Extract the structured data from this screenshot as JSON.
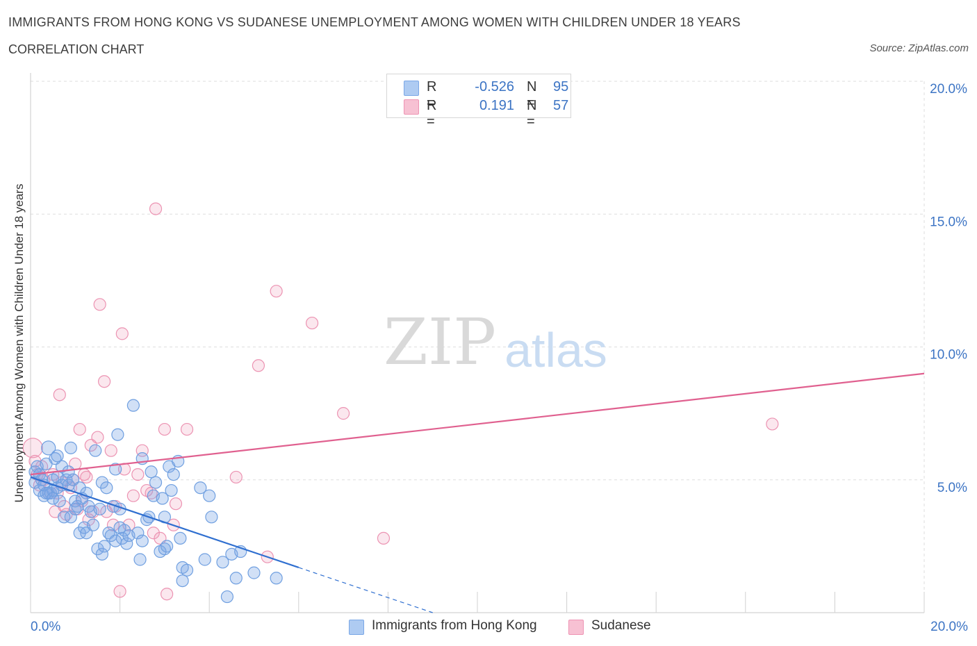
{
  "title": "IMMIGRANTS FROM HONG KONG VS SUDANESE UNEMPLOYMENT AMONG WOMEN WITH CHILDREN UNDER 18 YEARS",
  "subtitle": "CORRELATION CHART",
  "source": "Source: ZipAtlas.com",
  "watermark": {
    "zip": "ZIP",
    "atlas": "atlas"
  },
  "legend": {
    "rows": [
      {
        "r_label": "R =",
        "r_value": "-0.526",
        "n_label": "N =",
        "n_value": "95",
        "color": "#aecbf2",
        "border": "#7aa7e6"
      },
      {
        "r_label": "R =",
        "r_value": "0.191",
        "n_label": "N =",
        "n_value": "57",
        "color": "#f7c1d3",
        "border": "#ee93b3"
      }
    ]
  },
  "bottom_legend": [
    {
      "label": "Immigrants from Hong Kong",
      "color": "#aecbf2",
      "border": "#7aa7e6"
    },
    {
      "label": "Sudanese",
      "color": "#f7c1d3",
      "border": "#ee93b3"
    }
  ],
  "colors": {
    "blue_fill": "rgba(122,167,230,0.35)",
    "blue_stroke": "#6f9fe0",
    "blue_line": "#2f6fd0",
    "pink_fill": "rgba(238,147,179,0.22)",
    "pink_stroke": "#ec93b2",
    "pink_line": "#e0608f",
    "grid": "#dedede",
    "axis_text": "#3c74c4"
  },
  "chart_data": {
    "type": "scatter",
    "ylabel": "Unemployment Among Women with Children Under 18 years",
    "xlabel": "",
    "x_ticks": [
      "0.0%",
      "20.0%"
    ],
    "y_ticks": [
      "5.0%",
      "10.0%",
      "15.0%",
      "20.0%"
    ],
    "xlim": [
      0,
      20
    ],
    "ylim": [
      0,
      20
    ],
    "grid": true,
    "series": [
      {
        "name": "Immigrants from Hong Kong",
        "trend": {
          "x0": 0,
          "y0": 5.1,
          "x1": 6.0,
          "y1": 1.7,
          "dashed_to_x": 9.0
        },
        "points": [
          [
            0.1,
            5.3
          ],
          [
            0.1,
            4.9
          ],
          [
            0.15,
            5.5
          ],
          [
            0.2,
            4.6
          ],
          [
            0.2,
            5.2
          ],
          [
            0.25,
            5.0
          ],
          [
            0.3,
            4.4
          ],
          [
            0.3,
            4.8
          ],
          [
            0.35,
            5.6
          ],
          [
            0.4,
            4.5
          ],
          [
            0.4,
            6.2
          ],
          [
            0.45,
            4.5
          ],
          [
            0.5,
            5.0
          ],
          [
            0.5,
            4.6
          ],
          [
            0.55,
            5.8
          ],
          [
            0.6,
            4.7
          ],
          [
            0.6,
            5.1
          ],
          [
            0.65,
            4.2
          ],
          [
            0.7,
            5.5
          ],
          [
            0.7,
            4.8
          ],
          [
            0.75,
            3.6
          ],
          [
            0.8,
            5.0
          ],
          [
            0.85,
            4.8
          ],
          [
            0.9,
            3.6
          ],
          [
            0.9,
            6.2
          ],
          [
            0.95,
            5.0
          ],
          [
            1.0,
            4.2
          ],
          [
            1.0,
            3.9
          ],
          [
            1.1,
            4.7
          ],
          [
            1.1,
            3.0
          ],
          [
            1.15,
            4.3
          ],
          [
            1.2,
            3.2
          ],
          [
            1.25,
            3.0
          ],
          [
            1.3,
            4.0
          ],
          [
            1.35,
            3.8
          ],
          [
            1.4,
            3.3
          ],
          [
            1.45,
            6.1
          ],
          [
            1.5,
            2.4
          ],
          [
            1.55,
            3.9
          ],
          [
            1.6,
            4.9
          ],
          [
            1.6,
            2.2
          ],
          [
            1.65,
            2.5
          ],
          [
            1.7,
            4.7
          ],
          [
            1.75,
            3.0
          ],
          [
            1.8,
            2.9
          ],
          [
            1.85,
            4.0
          ],
          [
            1.9,
            5.4
          ],
          [
            1.95,
            6.7
          ],
          [
            2.0,
            3.9
          ],
          [
            2.05,
            2.8
          ],
          [
            2.1,
            3.1
          ],
          [
            2.15,
            2.6
          ],
          [
            2.2,
            2.9
          ],
          [
            2.3,
            7.8
          ],
          [
            2.4,
            3.0
          ],
          [
            2.45,
            2.0
          ],
          [
            2.5,
            2.7
          ],
          [
            2.5,
            5.8
          ],
          [
            2.6,
            3.5
          ],
          [
            2.65,
            3.6
          ],
          [
            2.7,
            5.3
          ],
          [
            2.75,
            4.4
          ],
          [
            2.8,
            4.9
          ],
          [
            2.9,
            2.3
          ],
          [
            2.95,
            4.3
          ],
          [
            3.0,
            3.6
          ],
          [
            3.0,
            2.4
          ],
          [
            3.05,
            2.5
          ],
          [
            3.1,
            5.5
          ],
          [
            3.15,
            4.6
          ],
          [
            3.2,
            5.2
          ],
          [
            3.3,
            5.7
          ],
          [
            3.35,
            2.8
          ],
          [
            3.4,
            1.2
          ],
          [
            3.4,
            1.7
          ],
          [
            3.5,
            1.6
          ],
          [
            3.8,
            4.7
          ],
          [
            3.9,
            2.0
          ],
          [
            4.0,
            4.4
          ],
          [
            4.05,
            3.6
          ],
          [
            4.3,
            1.9
          ],
          [
            4.4,
            0.6
          ],
          [
            4.5,
            2.2
          ],
          [
            4.6,
            1.3
          ],
          [
            4.7,
            2.3
          ],
          [
            5.0,
            1.5
          ],
          [
            5.5,
            1.3
          ],
          [
            0.35,
            4.5
          ],
          [
            0.5,
            4.3
          ],
          [
            0.85,
            5.3
          ],
          [
            1.05,
            4.0
          ],
          [
            1.25,
            4.5
          ],
          [
            1.9,
            2.7
          ],
          [
            2.0,
            3.2
          ],
          [
            0.6,
            5.9
          ]
        ]
      },
      {
        "name": "Sudanese",
        "trend": {
          "x0": 0,
          "y0": 5.2,
          "x1": 20,
          "y1": 9.0
        },
        "points": [
          [
            0.05,
            6.2
          ],
          [
            0.1,
            5.7
          ],
          [
            0.15,
            5.2
          ],
          [
            0.2,
            4.8
          ],
          [
            0.25,
            5.5
          ],
          [
            0.3,
            5.0
          ],
          [
            0.4,
            4.5
          ],
          [
            0.5,
            5.2
          ],
          [
            0.55,
            3.8
          ],
          [
            0.6,
            4.5
          ],
          [
            0.65,
            8.2
          ],
          [
            0.7,
            4.9
          ],
          [
            0.75,
            4.0
          ],
          [
            0.8,
            3.7
          ],
          [
            0.9,
            4.7
          ],
          [
            0.95,
            5.0
          ],
          [
            1.0,
            5.6
          ],
          [
            1.05,
            3.9
          ],
          [
            1.1,
            6.9
          ],
          [
            1.15,
            4.2
          ],
          [
            1.2,
            5.2
          ],
          [
            1.25,
            5.1
          ],
          [
            1.3,
            3.5
          ],
          [
            1.35,
            6.3
          ],
          [
            1.4,
            3.8
          ],
          [
            1.5,
            6.6
          ],
          [
            1.55,
            11.6
          ],
          [
            1.65,
            8.7
          ],
          [
            1.7,
            3.8
          ],
          [
            1.8,
            6.1
          ],
          [
            1.85,
            3.3
          ],
          [
            1.9,
            4.0
          ],
          [
            2.0,
            0.8
          ],
          [
            2.05,
            10.5
          ],
          [
            2.1,
            5.4
          ],
          [
            2.2,
            3.3
          ],
          [
            2.3,
            4.4
          ],
          [
            2.4,
            5.2
          ],
          [
            2.5,
            6.1
          ],
          [
            2.6,
            4.6
          ],
          [
            2.7,
            4.5
          ],
          [
            2.75,
            3.0
          ],
          [
            2.8,
            15.2
          ],
          [
            2.9,
            2.8
          ],
          [
            3.0,
            6.9
          ],
          [
            3.05,
            0.7
          ],
          [
            3.2,
            3.3
          ],
          [
            3.25,
            4.1
          ],
          [
            3.5,
            6.9
          ],
          [
            4.6,
            5.1
          ],
          [
            5.1,
            9.3
          ],
          [
            5.3,
            2.1
          ],
          [
            5.5,
            12.1
          ],
          [
            6.3,
            10.9
          ],
          [
            7.0,
            7.5
          ],
          [
            7.9,
            2.8
          ],
          [
            16.6,
            7.1
          ]
        ]
      }
    ]
  }
}
